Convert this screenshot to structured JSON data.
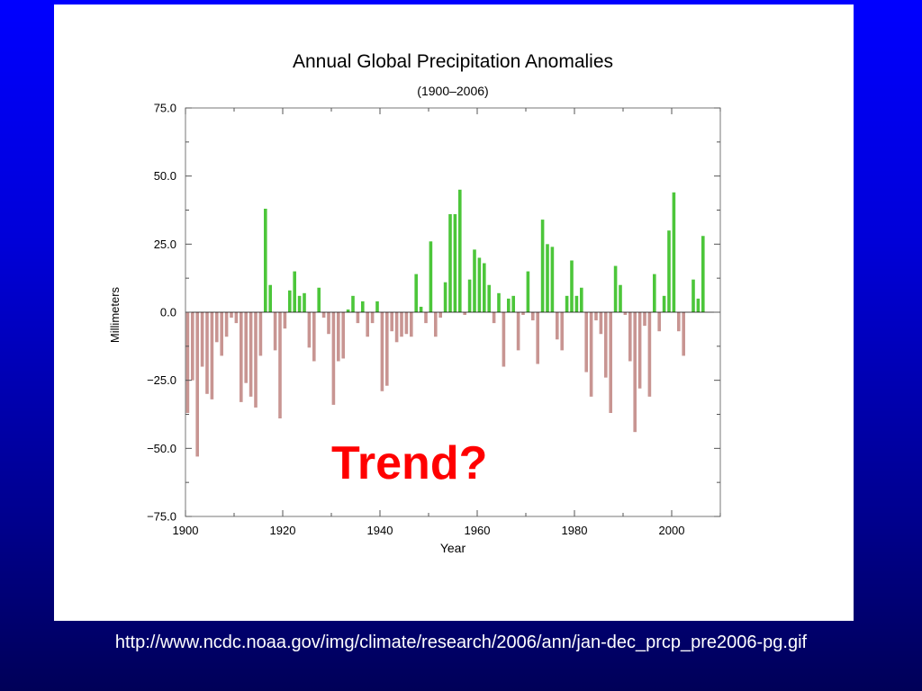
{
  "slide": {
    "annotation": "Trend?",
    "source_url": "http://www.ncdc.noaa.gov/img/climate/research/2006/ann/jan-dec_prcp_pre2006-pg.gif",
    "background_color": "#0000ff",
    "annotation_color": "#ff0000"
  },
  "chart_data": {
    "type": "bar",
    "title": "Annual Global Precipitation Anomalies",
    "subtitle": "(1900–2006)",
    "xlabel": "Year",
    "ylabel": "Millimeters",
    "xlim": [
      1900,
      2010
    ],
    "ylim": [
      -75,
      75
    ],
    "x_ticks": [
      1900,
      1920,
      1940,
      1960,
      1980,
      2000
    ],
    "y_ticks": [
      75,
      50,
      25,
      0,
      -25,
      -50,
      -75
    ],
    "y_tick_labels": [
      "75.0",
      "50.0",
      "25.0",
      "0.0",
      "−25.0",
      "−50.0",
      "−75.0"
    ],
    "grid": false,
    "positive_color": "#4cc63a",
    "negative_color": "#c89592",
    "start_year": 1900,
    "x": [
      1900,
      1901,
      1902,
      1903,
      1904,
      1905,
      1906,
      1907,
      1908,
      1909,
      1910,
      1911,
      1912,
      1913,
      1914,
      1915,
      1916,
      1917,
      1918,
      1919,
      1920,
      1921,
      1922,
      1923,
      1924,
      1925,
      1926,
      1927,
      1928,
      1929,
      1930,
      1931,
      1932,
      1933,
      1934,
      1935,
      1936,
      1937,
      1938,
      1939,
      1940,
      1941,
      1942,
      1943,
      1944,
      1945,
      1946,
      1947,
      1948,
      1949,
      1950,
      1951,
      1952,
      1953,
      1954,
      1955,
      1956,
      1957,
      1958,
      1959,
      1960,
      1961,
      1962,
      1963,
      1964,
      1965,
      1966,
      1967,
      1968,
      1969,
      1970,
      1971,
      1972,
      1973,
      1974,
      1975,
      1976,
      1977,
      1978,
      1979,
      1980,
      1981,
      1982,
      1983,
      1984,
      1985,
      1986,
      1987,
      1988,
      1989,
      1990,
      1991,
      1992,
      1993,
      1994,
      1995,
      1996,
      1997,
      1998,
      1999,
      2000,
      2001,
      2002,
      2003,
      2004,
      2005,
      2006
    ],
    "values": [
      -37,
      -25,
      -53,
      -20,
      -30,
      -32,
      -11,
      -16,
      -9,
      -2,
      -4,
      -33,
      -26,
      -31,
      -35,
      -16,
      38,
      10,
      -14,
      -39,
      -6,
      8,
      15,
      6,
      7,
      -13,
      -18,
      9,
      -2,
      -8,
      -34,
      -18,
      -17,
      1,
      6,
      -4,
      4,
      -9,
      -4,
      4,
      -29,
      -27,
      -7,
      -11,
      -9,
      -8,
      -9,
      14,
      2,
      -4,
      26,
      -9,
      -2,
      11,
      36,
      36,
      45,
      -1,
      12,
      23,
      20,
      18,
      10,
      -4,
      7,
      -20,
      5,
      6,
      -14,
      -1,
      15,
      -3,
      -19,
      34,
      25,
      24,
      -10,
      -14,
      6,
      19,
      6,
      9,
      -22,
      -31,
      -3,
      -8,
      -24,
      -37,
      17,
      10,
      -1,
      -18,
      -44,
      -28,
      -5,
      -31,
      14,
      -7,
      6,
      30,
      44,
      -7,
      -16,
      0,
      12,
      5,
      28
    ]
  }
}
